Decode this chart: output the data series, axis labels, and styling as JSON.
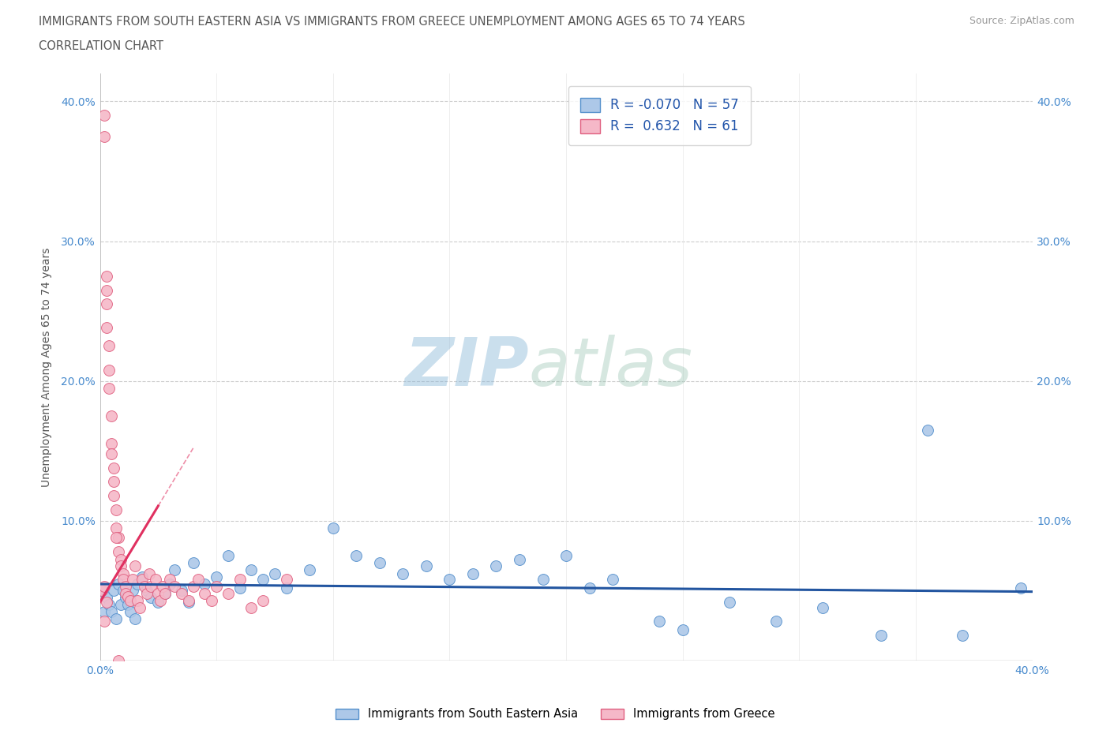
{
  "title_line1": "IMMIGRANTS FROM SOUTH EASTERN ASIA VS IMMIGRANTS FROM GREECE UNEMPLOYMENT AMONG AGES 65 TO 74 YEARS",
  "title_line2": "CORRELATION CHART",
  "source_text": "Source: ZipAtlas.com",
  "ylabel": "Unemployment Among Ages 65 to 74 years",
  "xlim": [
    0.0,
    0.4
  ],
  "ylim": [
    0.0,
    0.42
  ],
  "blue_color": "#adc8e8",
  "blue_edge_color": "#5590cc",
  "blue_line_color": "#2255a0",
  "pink_color": "#f5b8c8",
  "pink_edge_color": "#e06080",
  "pink_line_color": "#e03060",
  "R_blue": -0.07,
  "N_blue": 57,
  "R_pink": 0.632,
  "N_pink": 61,
  "watermark_zip": "ZIP",
  "watermark_atlas": "atlas",
  "blue_scatter_x": [
    0.001,
    0.002,
    0.003,
    0.004,
    0.005,
    0.006,
    0.007,
    0.008,
    0.009,
    0.01,
    0.011,
    0.012,
    0.013,
    0.014,
    0.015,
    0.016,
    0.018,
    0.02,
    0.022,
    0.025,
    0.028,
    0.03,
    0.032,
    0.035,
    0.038,
    0.04,
    0.045,
    0.05,
    0.055,
    0.06,
    0.065,
    0.07,
    0.075,
    0.08,
    0.09,
    0.1,
    0.11,
    0.12,
    0.13,
    0.14,
    0.15,
    0.16,
    0.17,
    0.18,
    0.19,
    0.2,
    0.21,
    0.22,
    0.24,
    0.25,
    0.27,
    0.29,
    0.31,
    0.335,
    0.355,
    0.37,
    0.395
  ],
  "blue_scatter_y": [
    0.05,
    0.035,
    0.045,
    0.04,
    0.035,
    0.05,
    0.03,
    0.055,
    0.04,
    0.05,
    0.045,
    0.04,
    0.035,
    0.05,
    0.03,
    0.055,
    0.06,
    0.05,
    0.045,
    0.042,
    0.048,
    0.055,
    0.065,
    0.05,
    0.042,
    0.07,
    0.055,
    0.06,
    0.075,
    0.052,
    0.065,
    0.058,
    0.062,
    0.052,
    0.065,
    0.095,
    0.075,
    0.07,
    0.062,
    0.068,
    0.058,
    0.062,
    0.068,
    0.072,
    0.058,
    0.075,
    0.052,
    0.058,
    0.028,
    0.022,
    0.042,
    0.028,
    0.038,
    0.018,
    0.165,
    0.018,
    0.052
  ],
  "pink_scatter_x": [
    0.001,
    0.002,
    0.002,
    0.003,
    0.003,
    0.004,
    0.004,
    0.005,
    0.005,
    0.006,
    0.006,
    0.007,
    0.007,
    0.008,
    0.008,
    0.009,
    0.009,
    0.01,
    0.01,
    0.011,
    0.011,
    0.012,
    0.013,
    0.014,
    0.015,
    0.016,
    0.017,
    0.018,
    0.019,
    0.02,
    0.021,
    0.022,
    0.024,
    0.025,
    0.026,
    0.027,
    0.028,
    0.03,
    0.032,
    0.035,
    0.038,
    0.04,
    0.042,
    0.045,
    0.048,
    0.05,
    0.055,
    0.06,
    0.065,
    0.07,
    0.08,
    0.002,
    0.003,
    0.003,
    0.004,
    0.005,
    0.006,
    0.007,
    0.008,
    0.002,
    0.003
  ],
  "pink_scatter_y": [
    0.05,
    0.39,
    0.375,
    0.275,
    0.255,
    0.225,
    0.195,
    0.175,
    0.155,
    0.128,
    0.118,
    0.108,
    0.095,
    0.088,
    0.078,
    0.072,
    0.068,
    0.062,
    0.058,
    0.053,
    0.048,
    0.046,
    0.043,
    0.058,
    0.068,
    0.043,
    0.038,
    0.058,
    0.053,
    0.048,
    0.062,
    0.053,
    0.058,
    0.048,
    0.043,
    0.053,
    0.048,
    0.058,
    0.053,
    0.048,
    0.043,
    0.053,
    0.058,
    0.048,
    0.043,
    0.053,
    0.048,
    0.058,
    0.038,
    0.043,
    0.058,
    0.053,
    0.265,
    0.238,
    0.208,
    0.148,
    0.138,
    0.088,
    0.0,
    0.028,
    0.042
  ]
}
